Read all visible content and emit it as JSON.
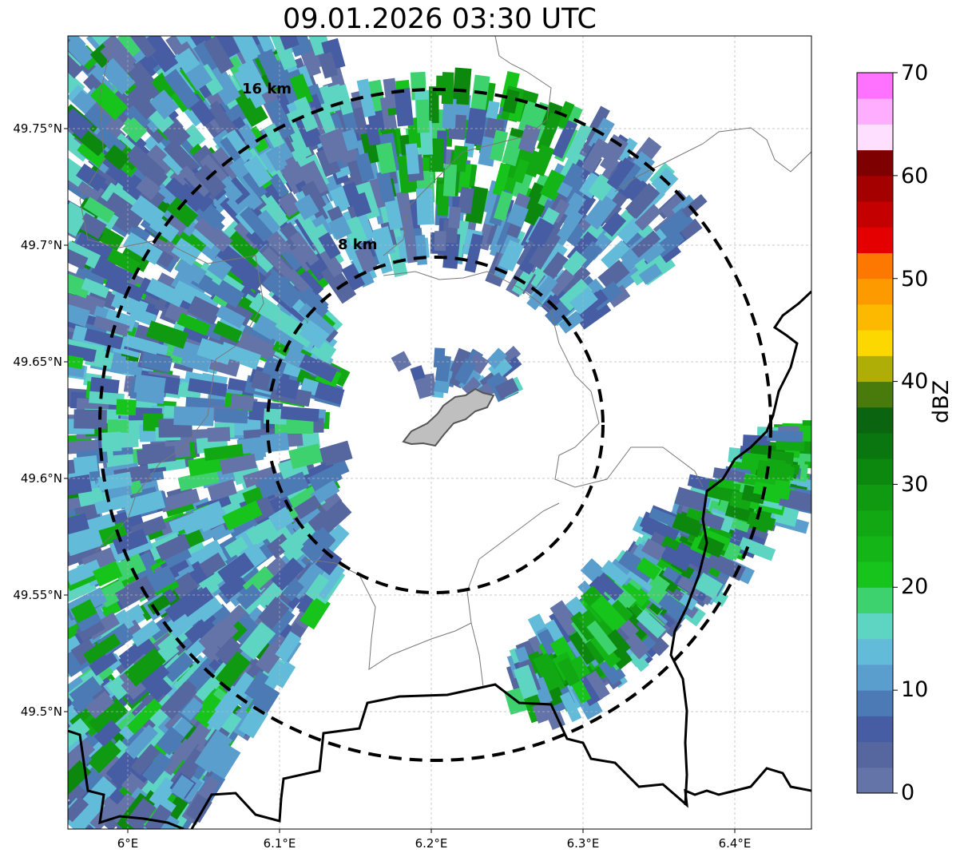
{
  "title": "09.01.2026 03:30 UTC",
  "map": {
    "lat_labels": [
      "49.75°N",
      "49.7°N",
      "49.65°N",
      "49.6°N",
      "49.55°N",
      "49.5°N"
    ],
    "lon_labels": [
      "6°E",
      "6.1°E",
      "6.2°E",
      "6.3°E",
      "6.4°E"
    ],
    "rings": [
      {
        "label": "16 km",
        "radius_km": 16
      },
      {
        "label": "8 km",
        "radius_km": 8
      }
    ],
    "gridlines": true,
    "ring_style": "dashed-black",
    "city_area_color": "#bfbfbf"
  },
  "colorbar": {
    "label": "dBZ",
    "min": 0,
    "max": 70,
    "tick_labels": [
      "0",
      "10",
      "20",
      "30",
      "40",
      "50",
      "60",
      "70"
    ],
    "colors": [
      "#6474a8",
      "#56679f",
      "#465da4",
      "#4c7ab4",
      "#5a9ecd",
      "#62bcd9",
      "#5ed4c2",
      "#3ed26e",
      "#16c41c",
      "#13b616",
      "#11a814",
      "#0f9a11",
      "#0d880f",
      "#0a7610",
      "#0b640f",
      "#487a0c",
      "#afae06",
      "#fdd800",
      "#fdb800",
      "#fd9a00",
      "#fd7800",
      "#e50000",
      "#c40000",
      "#a40000",
      "#7e0000",
      "#ffdfff",
      "#ffaeff",
      "#ff72ff",
      "#ef36f0"
    ]
  }
}
